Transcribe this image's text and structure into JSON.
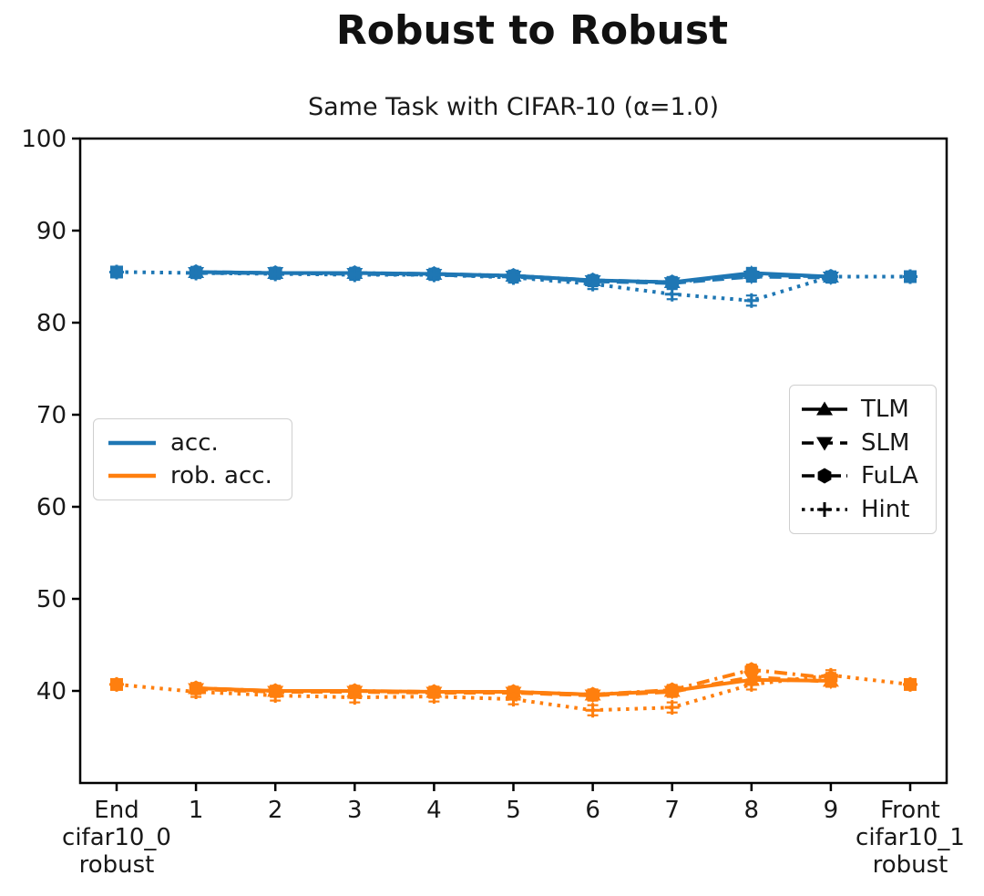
{
  "chart_data": {
    "type": "line",
    "title": "Robust to Robust",
    "subtitle": "Same Task with CIFAR-10 (α=1.0)",
    "xlabel": "",
    "ylabel": "",
    "grid": false,
    "ylim": [
      30,
      100
    ],
    "y_ticks": [
      40,
      50,
      60,
      70,
      80,
      90,
      100
    ],
    "x": [
      0,
      1,
      2,
      3,
      4,
      5,
      6,
      7,
      8,
      9,
      10
    ],
    "x_ticklabels": [
      [
        "End",
        "cifar10_0",
        "robust"
      ],
      "1",
      "2",
      "3",
      "4",
      "5",
      "6",
      "7",
      "8",
      "9",
      [
        "Front",
        "cifar10_1",
        "robust"
      ]
    ],
    "yerr": 0.55,
    "colors": {
      "acc": "#1f77b4",
      "rob_acc": "#ff7f0e",
      "methods": "#000000"
    },
    "color_legend": {
      "position": "center-left",
      "entries": [
        {
          "label": "acc.",
          "color": "#1f77b4"
        },
        {
          "label": "rob. acc.",
          "color": "#ff7f0e"
        }
      ]
    },
    "style_legend": {
      "position": "center-right",
      "entries": [
        {
          "label": "TLM",
          "linestyle": "solid",
          "marker": "triangle-up"
        },
        {
          "label": "SLM",
          "linestyle": "dashed",
          "marker": "triangle-down"
        },
        {
          "label": "FuLA",
          "linestyle": "dashdot",
          "marker": "hexagon"
        },
        {
          "label": "Hint",
          "linestyle": "dotted",
          "marker": "plus"
        }
      ]
    },
    "series": [
      {
        "group": "acc.",
        "method": "TLM",
        "color": "#1f77b4",
        "linestyle": "solid",
        "marker": "triangle-up",
        "values": [
          null,
          85.5,
          85.4,
          85.4,
          85.3,
          85.1,
          84.6,
          84.4,
          85.4,
          85.0,
          null
        ]
      },
      {
        "group": "acc.",
        "method": "SLM",
        "color": "#1f77b4",
        "linestyle": "dashed",
        "marker": "triangle-down",
        "values": [
          null,
          85.4,
          85.4,
          85.3,
          85.2,
          85.0,
          84.5,
          84.3,
          85.0,
          84.9,
          null
        ]
      },
      {
        "group": "acc.",
        "method": "FuLA",
        "color": "#1f77b4",
        "linestyle": "dashdot",
        "marker": "hexagon",
        "values": [
          null,
          85.5,
          85.4,
          85.4,
          85.3,
          85.1,
          84.6,
          84.4,
          85.2,
          85.0,
          null
        ]
      },
      {
        "group": "acc.",
        "method": "Hint",
        "color": "#1f77b4",
        "linestyle": "dotted",
        "marker": "plus",
        "values": [
          85.5,
          85.4,
          85.3,
          85.2,
          85.2,
          84.9,
          84.2,
          83.1,
          82.4,
          85.0,
          85.0
        ]
      },
      {
        "group": "rob. acc.",
        "method": "TLM",
        "color": "#ff7f0e",
        "linestyle": "solid",
        "marker": "triangle-up",
        "values": [
          null,
          40.3,
          40.0,
          40.0,
          39.9,
          39.9,
          39.6,
          40.0,
          41.2,
          41.1,
          null
        ]
      },
      {
        "group": "rob. acc.",
        "method": "SLM",
        "color": "#ff7f0e",
        "linestyle": "dashed",
        "marker": "triangle-down",
        "values": [
          null,
          40.2,
          39.9,
          39.9,
          39.8,
          39.8,
          39.5,
          39.9,
          41.5,
          41.0,
          null
        ]
      },
      {
        "group": "rob. acc.",
        "method": "FuLA",
        "color": "#ff7f0e",
        "linestyle": "dashdot",
        "marker": "hexagon",
        "values": [
          null,
          40.3,
          40.0,
          40.0,
          39.9,
          39.9,
          39.6,
          40.1,
          42.3,
          41.4,
          null
        ]
      },
      {
        "group": "rob. acc.",
        "method": "Hint",
        "color": "#ff7f0e",
        "linestyle": "dotted",
        "marker": "plus",
        "values": [
          40.7,
          39.9,
          39.5,
          39.3,
          39.4,
          39.1,
          37.9,
          38.2,
          40.7,
          41.7,
          40.7
        ]
      }
    ],
    "anchors": {
      "marker": "square",
      "points": [
        {
          "x": 0,
          "acc": 85.5,
          "rob_acc": 40.7
        },
        {
          "x": 10,
          "acc": 85.0,
          "rob_acc": 40.7
        }
      ]
    }
  }
}
